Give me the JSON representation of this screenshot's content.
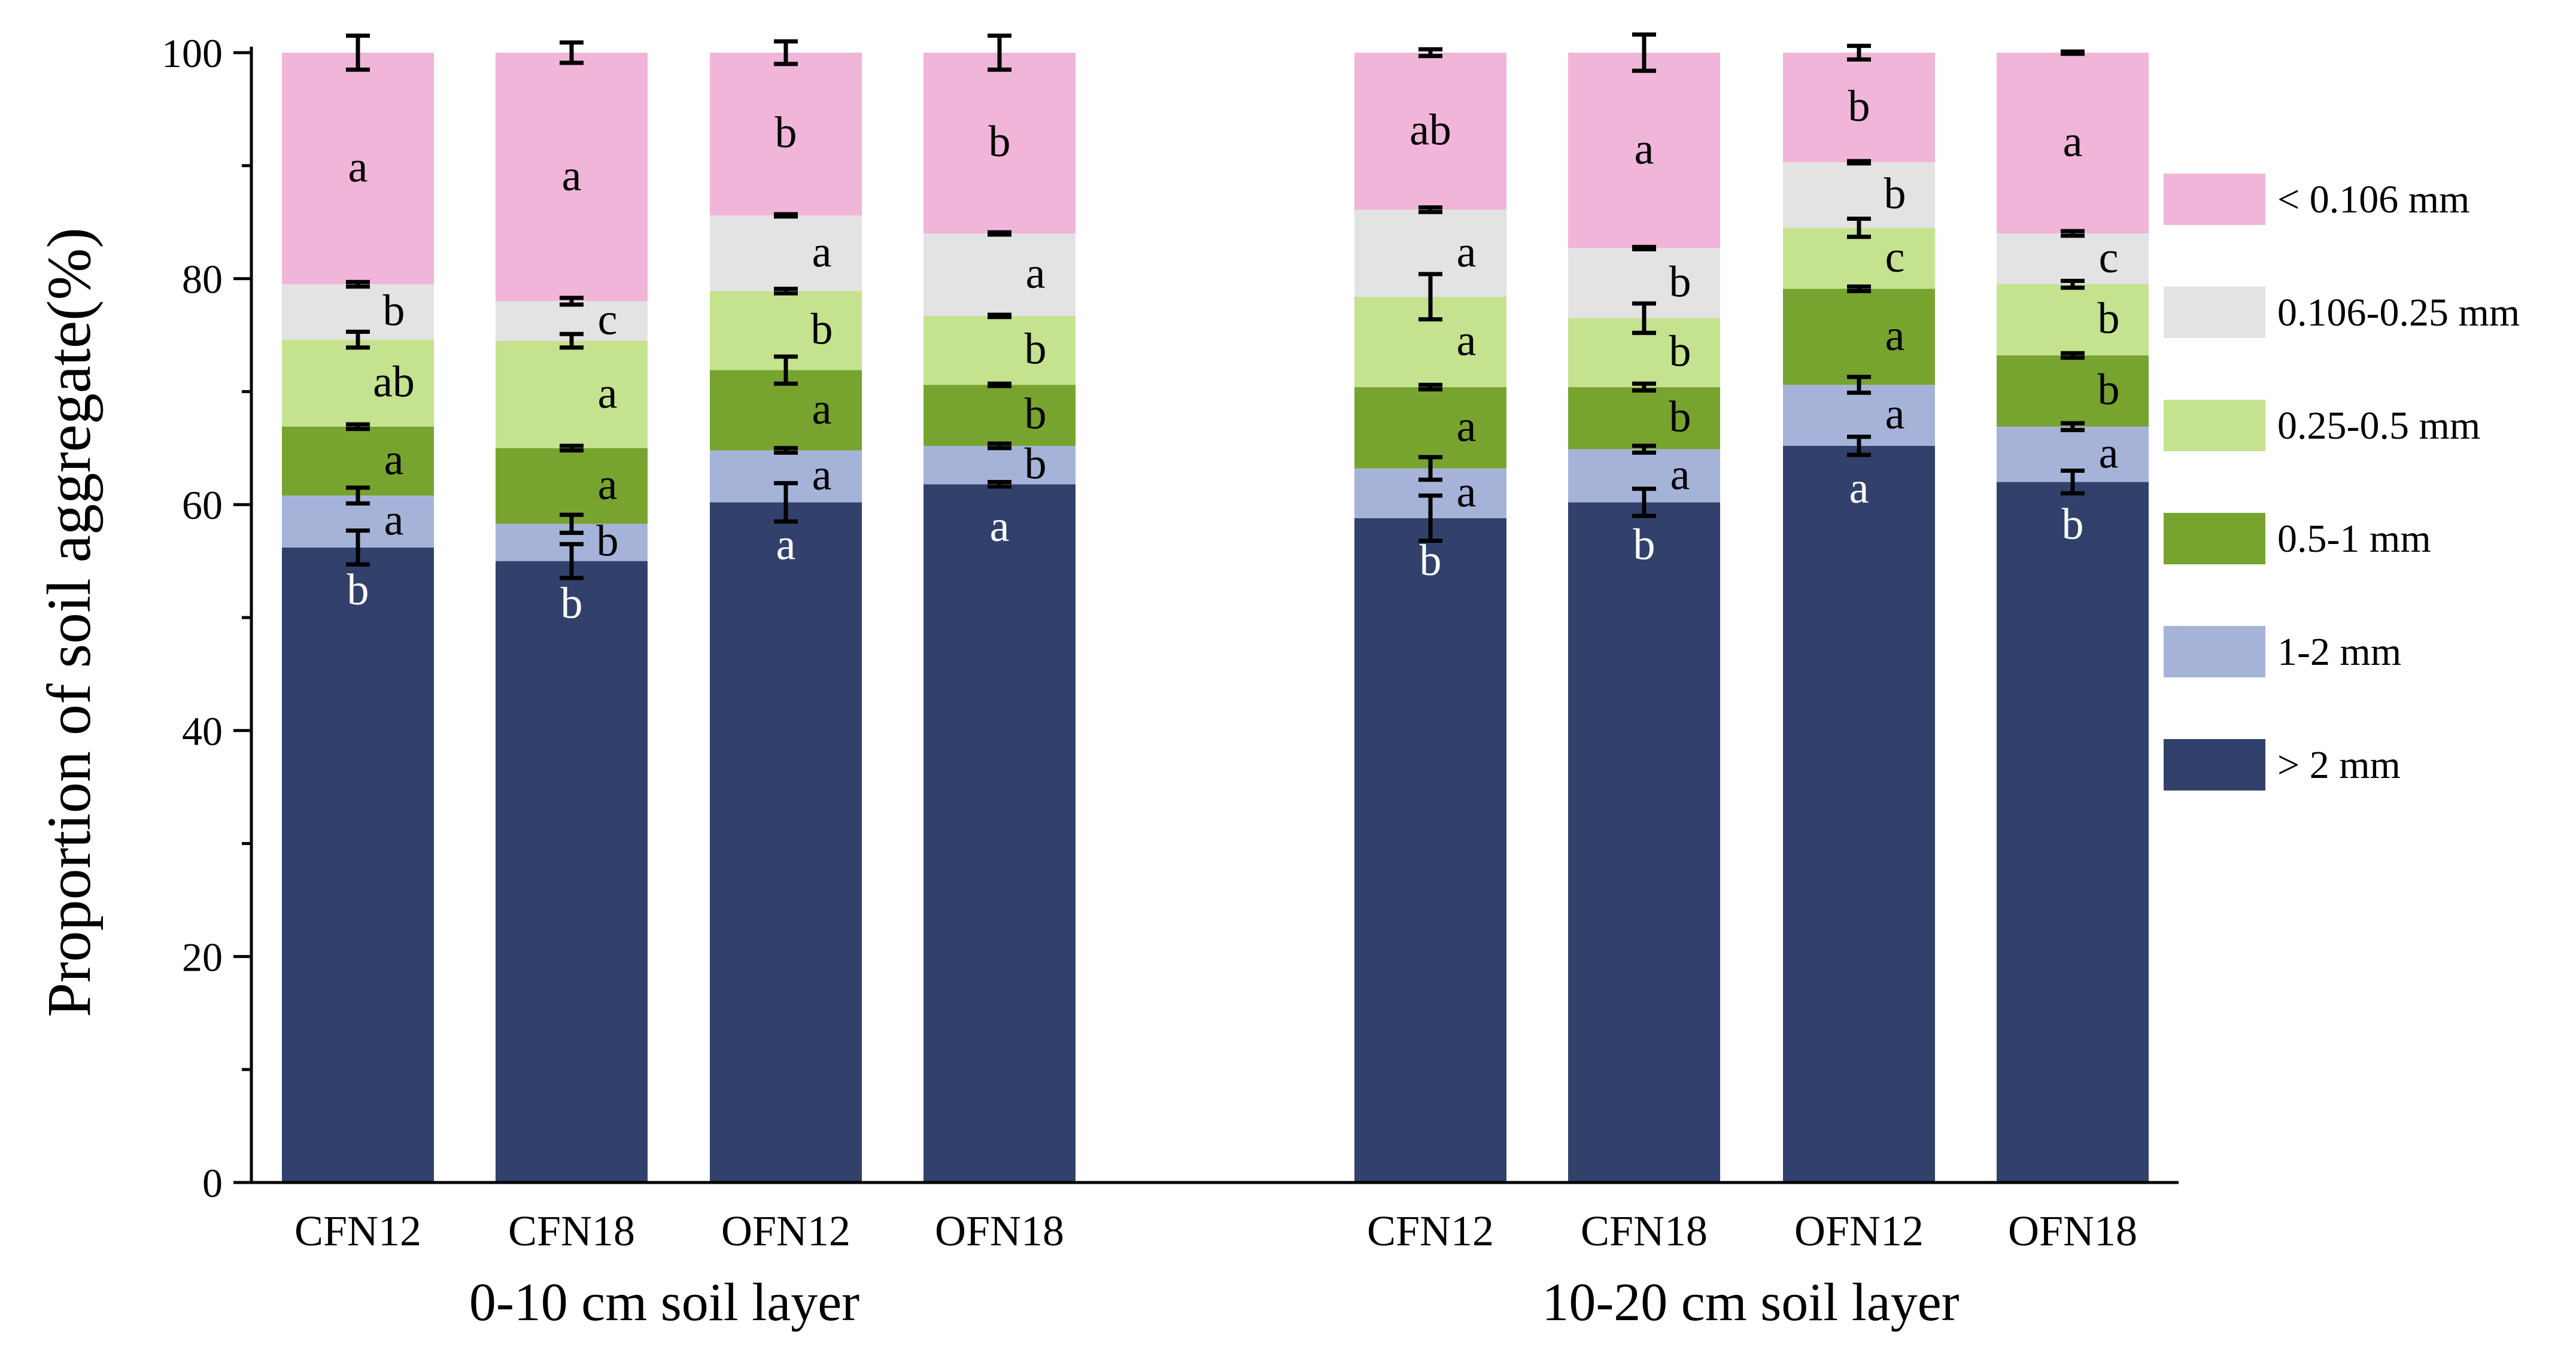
{
  "chart_data": {
    "type": "bar",
    "stacked": true,
    "ylabel": "Proportion of soil aggregate(%)",
    "ylim": [
      0,
      100
    ],
    "yticks": [
      0,
      20,
      40,
      60,
      80,
      100
    ],
    "groups": [
      {
        "label": "0-10 cm soil layer",
        "categories": [
          "CFN12",
          "CFN18",
          "OFN12",
          "OFN18"
        ],
        "stacks": [
          {
            "tops": [
              56.2,
              60.8,
              66.9,
              74.6,
              79.5,
              100
            ],
            "errors": [
              1.5,
              0.7,
              0.2,
              0.7,
              0.2,
              1.5
            ],
            "letters": [
              "b",
              "a",
              "a",
              "ab",
              "b",
              "a"
            ]
          },
          {
            "tops": [
              55.0,
              58.3,
              65.0,
              74.5,
              78.0,
              100
            ],
            "errors": [
              1.5,
              0.8,
              0.2,
              0.6,
              0.3,
              0.9
            ],
            "letters": [
              "b",
              "b",
              "a",
              "a",
              "c",
              "a"
            ]
          },
          {
            "tops": [
              60.2,
              64.8,
              71.9,
              78.9,
              85.6,
              100
            ],
            "errors": [
              1.7,
              0.2,
              1.2,
              0.2,
              0.1,
              1.0
            ],
            "letters": [
              "a",
              "a",
              "a",
              "b",
              "a",
              "b"
            ]
          },
          {
            "tops": [
              61.8,
              65.2,
              70.6,
              76.7,
              84.0,
              100
            ],
            "errors": [
              0.2,
              0.2,
              0.1,
              0.1,
              0.1,
              1.5
            ],
            "letters": [
              "a",
              "b",
              "b",
              "b",
              "a",
              "b"
            ]
          }
        ]
      },
      {
        "label": "10-20 cm soil layer",
        "categories": [
          "CFN12",
          "CFN18",
          "OFN12",
          "OFN18"
        ],
        "stacks": [
          {
            "tops": [
              58.8,
              63.2,
              70.4,
              78.4,
              86.1,
              100
            ],
            "errors": [
              2.0,
              1.0,
              0.2,
              2.0,
              0.2,
              0.3
            ],
            "letters": [
              "b",
              "a",
              "a",
              "a",
              "a",
              "ab"
            ]
          },
          {
            "tops": [
              60.2,
              64.9,
              70.4,
              76.5,
              82.7,
              100
            ],
            "errors": [
              1.2,
              0.3,
              0.3,
              1.3,
              0.1,
              1.6
            ],
            "letters": [
              "b",
              "a",
              "b",
              "b",
              "b",
              "a"
            ]
          },
          {
            "tops": [
              65.2,
              70.6,
              79.1,
              84.5,
              90.3,
              100
            ],
            "errors": [
              0.8,
              0.7,
              0.2,
              0.8,
              0.1,
              0.6
            ],
            "letters": [
              "a",
              "a",
              "a",
              "c",
              "b",
              "b"
            ]
          },
          {
            "tops": [
              62.0,
              66.9,
              73.2,
              79.5,
              84.0,
              100
            ],
            "errors": [
              1.0,
              0.3,
              0.2,
              0.3,
              0.2,
              0.1
            ],
            "letters": [
              "b",
              "a",
              "b",
              "b",
              "c",
              "a"
            ]
          }
        ]
      }
    ],
    "series": [
      {
        "name": "> 2 mm",
        "color": "#31416b",
        "letter_color": "#ffffff"
      },
      {
        "name": "1-2 mm",
        "color": "#a6b3d8",
        "letter_color": "#000000"
      },
      {
        "name": "0.5-1 mm",
        "color": "#77a42e",
        "letter_color": "#000000"
      },
      {
        "name": "0.25-0.5 mm",
        "color": "#c5e28f",
        "letter_color": "#000000"
      },
      {
        "name": "0.106-0.25 mm",
        "color": "#e3e3e3",
        "letter_color": "#000000"
      },
      {
        "name": "< 0.106 mm",
        "color": "#f0b5d9",
        "letter_color": "#000000"
      }
    ],
    "legend": [
      {
        "label": "< 0.106 mm",
        "color": "#f0b5d9"
      },
      {
        "label": "0.106-0.25 mm",
        "color": "#e3e3e3"
      },
      {
        "label": "0.25-0.5 mm",
        "color": "#c5e28f"
      },
      {
        "label": "0.5-1 mm",
        "color": "#77a42e"
      },
      {
        "label": "1-2 mm",
        "color": "#a6b3d8"
      },
      {
        "label": "> 2 mm",
        "color": "#31416b"
      }
    ],
    "legend_position": "right"
  }
}
